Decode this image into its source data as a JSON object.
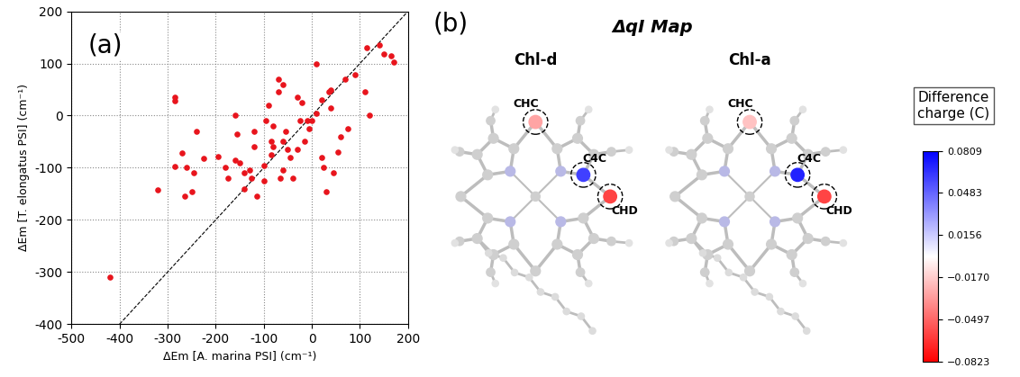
{
  "chart_data": {
    "type": "scatter",
    "panel_label": "(a)",
    "x_label": "ΔEm [A. marina PSI] (cm⁻¹)",
    "y_label": "ΔEm [T. elongatus PSI] (cm⁻¹)",
    "x": [
      -420,
      -320,
      -285,
      -285,
      -285,
      -270,
      -265,
      -260,
      -250,
      -245,
      -240,
      -225,
      -195,
      -180,
      -175,
      -160,
      -160,
      -155,
      -150,
      -140,
      -140,
      -130,
      -125,
      -120,
      -120,
      -115,
      -100,
      -100,
      -95,
      -90,
      -85,
      -85,
      -80,
      -80,
      -70,
      -70,
      -65,
      -60,
      -60,
      -60,
      -55,
      -50,
      -45,
      -40,
      -30,
      -30,
      -25,
      -20,
      -15,
      -10,
      -5,
      0,
      10,
      10,
      20,
      20,
      25,
      30,
      35,
      40,
      40,
      45,
      55,
      60,
      70,
      75,
      90,
      110,
      115,
      120,
      140,
      150,
      165,
      170
    ],
    "values": [
      -310,
      -143,
      35,
      28,
      -98,
      -72,
      -155,
      -100,
      -145,
      -110,
      -30,
      -82,
      -78,
      -100,
      -120,
      0,
      -85,
      -35,
      -90,
      -110,
      -140,
      -105,
      -120,
      -30,
      -60,
      -155,
      -95,
      -125,
      -10,
      20,
      -75,
      -50,
      -60,
      -20,
      70,
      45,
      -120,
      -105,
      60,
      -50,
      -30,
      -65,
      -80,
      -120,
      -65,
      35,
      -10,
      25,
      -50,
      -10,
      -25,
      -10,
      100,
      5,
      -80,
      30,
      -100,
      -145,
      45,
      50,
      15,
      -110,
      -70,
      -40,
      70,
      -25,
      78,
      45,
      130,
      0,
      135,
      118,
      115,
      103
    ],
    "color": "#e8141c",
    "xlim": [
      -500,
      200
    ],
    "xticks": [
      -500,
      -400,
      -300,
      -200,
      -100,
      0,
      100,
      200
    ],
    "ylim": [
      -400,
      200
    ],
    "yticks": [
      -400,
      -300,
      -200,
      -100,
      0,
      100,
      200
    ],
    "grid": true
  },
  "diagram": {
    "panel_label": "(b)",
    "title": "ΔqI Map",
    "molecules": [
      {
        "name": "Chl-d",
        "atoms": [
          {
            "label": "CHC",
            "charge": -0.03
          },
          {
            "label": "C4C",
            "charge": 0.06
          },
          {
            "label": "CHD",
            "charge": -0.06
          }
        ]
      },
      {
        "name": "Chl-a",
        "atoms": [
          {
            "label": "CHC",
            "charge": -0.02
          },
          {
            "label": "C4C",
            "charge": 0.07
          },
          {
            "label": "CHD",
            "charge": -0.06
          }
        ]
      }
    ],
    "colorbar": {
      "title": "Difference\ncharge (C)",
      "lim": [
        -0.0823,
        0.0809
      ],
      "ticks": [
        {
          "value": -0.0823,
          "label": "−0.0823"
        },
        {
          "value": -0.0497,
          "label": "−0.0497"
        },
        {
          "value": -0.017,
          "label": "−0.0170"
        },
        0.0156,
        0.0483,
        0.0809
      ]
    }
  }
}
